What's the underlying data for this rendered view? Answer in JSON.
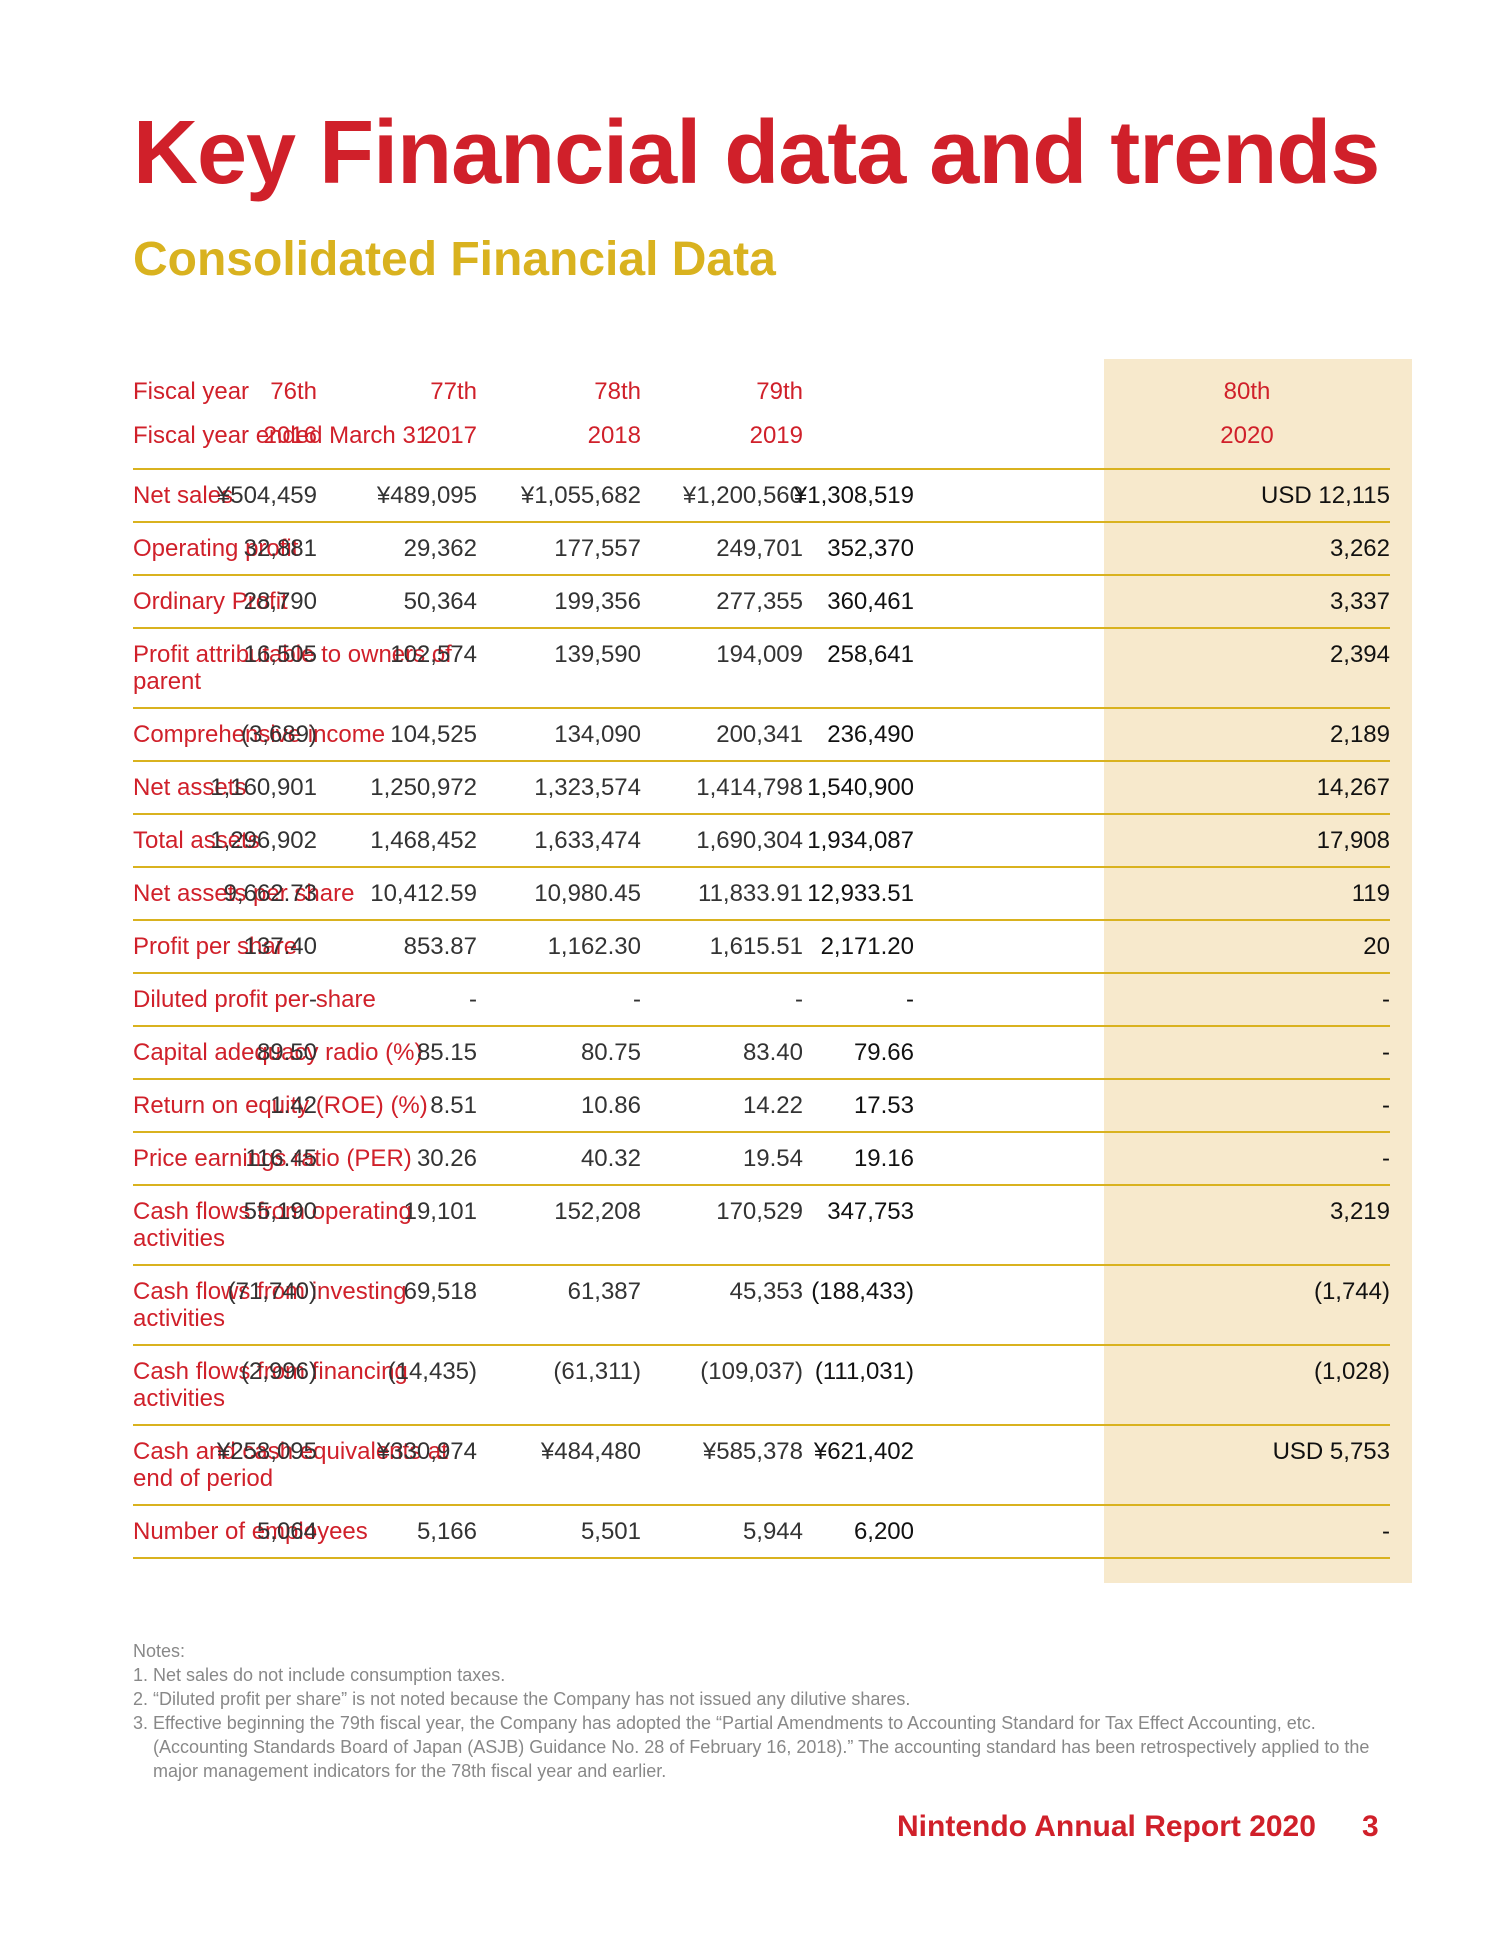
{
  "title": "Key Financial data and trends",
  "subtitle": "Consolidated Financial Data",
  "header": {
    "fiscal_year_label": "Fiscal year",
    "fiscal_year_ended_label": "Fiscal year ended March 31",
    "periods": [
      "76th",
      "77th",
      "78th",
      "79th",
      "80th"
    ],
    "years": [
      "2016",
      "2017",
      "2018",
      "2019",
      "2020"
    ]
  },
  "rows": [
    {
      "label": "Net sales",
      "values": [
        "¥504,459",
        "¥489,095",
        "¥1,055,682",
        "¥1,200,560",
        "¥1,308,519",
        "USD 12,115"
      ]
    },
    {
      "label": "Operating profit",
      "values": [
        "32,881",
        "29,362",
        "177,557",
        "249,701",
        "352,370",
        "3,262"
      ]
    },
    {
      "label": "Ordinary Profit",
      "values": [
        "28,790",
        "50,364",
        "199,356",
        "277,355",
        "360,461",
        "3,337"
      ]
    },
    {
      "label": "Profit attributable to owners of parent",
      "values": [
        "16,505",
        "102,574",
        "139,590",
        "194,009",
        "258,641",
        "2,394"
      ]
    },
    {
      "label": "Comprehensive income",
      "values": [
        "(3,689)",
        "104,525",
        "134,090",
        "200,341",
        "236,490",
        "2,189"
      ]
    },
    {
      "label": "Net assets",
      "values": [
        "1,160,901",
        "1,250,972",
        "1,323,574",
        "1,414,798",
        "1,540,900",
        "14,267"
      ]
    },
    {
      "label": "Total assets",
      "values": [
        "1,296,902",
        "1,468,452",
        "1,633,474",
        "1,690,304",
        "1,934,087",
        "17,908"
      ]
    },
    {
      "label": "Net assets per share",
      "values": [
        "9,662.73",
        "10,412.59",
        "10,980.45",
        "11,833.91",
        "12,933.51",
        "119"
      ]
    },
    {
      "label": "Profit per share",
      "values": [
        "137.40",
        "853.87",
        "1,162.30",
        "1,615.51",
        "2,171.20",
        "20"
      ]
    },
    {
      "label": "Diluted profit per share",
      "values": [
        "-",
        "-",
        "-",
        "-",
        "-",
        "-"
      ]
    },
    {
      "label": "Capital adequacy radio (%)",
      "values": [
        "89.50",
        "85.15",
        "80.75",
        "83.40",
        "79.66",
        "-"
      ]
    },
    {
      "label": "Return on equity (ROE) (%)",
      "values": [
        "1.42",
        "8.51",
        "10.86",
        "14.22",
        "17.53",
        "-"
      ]
    },
    {
      "label": "Price earnings ratio (PER)",
      "values": [
        "116.45",
        "30.26",
        "40.32",
        "19.54",
        "19.16",
        "-"
      ]
    },
    {
      "label": "Cash flows from operating activities",
      "values": [
        "55,190",
        "19,101",
        "152,208",
        "170,529",
        "347,753",
        "3,219"
      ]
    },
    {
      "label": "Cash flows from investing activities",
      "values": [
        "(71,740)",
        "69,518",
        "61,387",
        "45,353",
        "(188,433)",
        "(1,744)"
      ]
    },
    {
      "label": "Cash flows from financing activities",
      "values": [
        "(2,996)",
        "(14,435)",
        "(61,311)",
        "(109,037)",
        "(111,031)",
        "(1,028)"
      ]
    },
    {
      "label": "Cash and cash equivalents at end of period",
      "values": [
        "¥258,095",
        "¥330,974",
        "¥484,480",
        "¥585,378",
        "¥621,402",
        "USD 5,753"
      ]
    },
    {
      "label": "Number of employees",
      "values": [
        "5,064",
        "5,166",
        "5,501",
        "5,944",
        "6,200",
        "-"
      ]
    }
  ],
  "notes": {
    "heading": "Notes:",
    "items": [
      "1. Net sales do not include consumption taxes.",
      "2. “Diluted profit per share” is not noted because the Company has not issued any dilutive shares.",
      "3. Effective beginning the 79th fiscal year, the Company has adopted the “Partial Amendments to Accounting Standard for Tax Effect Accounting, etc. (Accounting Standards Board of Japan (ASJB) Guidance No. 28 of February 16, 2018).” The accounting standard has been retrospectively applied to the major management indicators for the 78th fiscal year and earlier."
    ]
  },
  "footer": {
    "report_title": "Nintendo Annual Report 2020",
    "page_number": "3"
  },
  "colors": {
    "title_red": "#d0202a",
    "subtitle_gold": "#d9b21f",
    "rule_gold": "#d9b21f",
    "highlight_cream": "#f7e9cc",
    "notes_gray": "#888888"
  }
}
